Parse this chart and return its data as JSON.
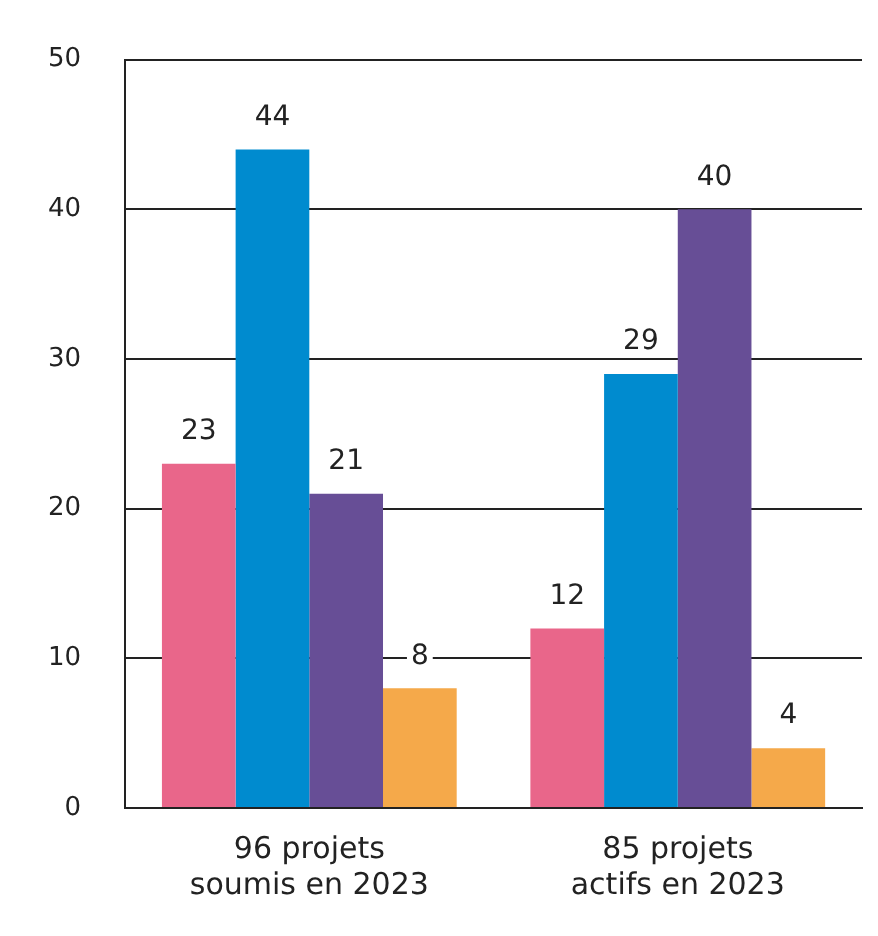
{
  "chart_data": {
    "type": "bar",
    "categories": [
      "96 projets\nsoumis en 2023",
      "85 projets\nactifs en 2023"
    ],
    "series": [
      {
        "color": "#e9668a",
        "values": [
          23,
          12
        ]
      },
      {
        "color": "#008bcf",
        "values": [
          44,
          29
        ]
      },
      {
        "color": "#674e96",
        "values": [
          21,
          40
        ]
      },
      {
        "color": "#f5a94a",
        "values": [
          8,
          4
        ]
      }
    ],
    "ylim": [
      0,
      50
    ],
    "yticks": [
      0,
      10,
      20,
      30,
      40,
      50
    ],
    "grid": "y",
    "legend": false,
    "data_labels": true
  }
}
